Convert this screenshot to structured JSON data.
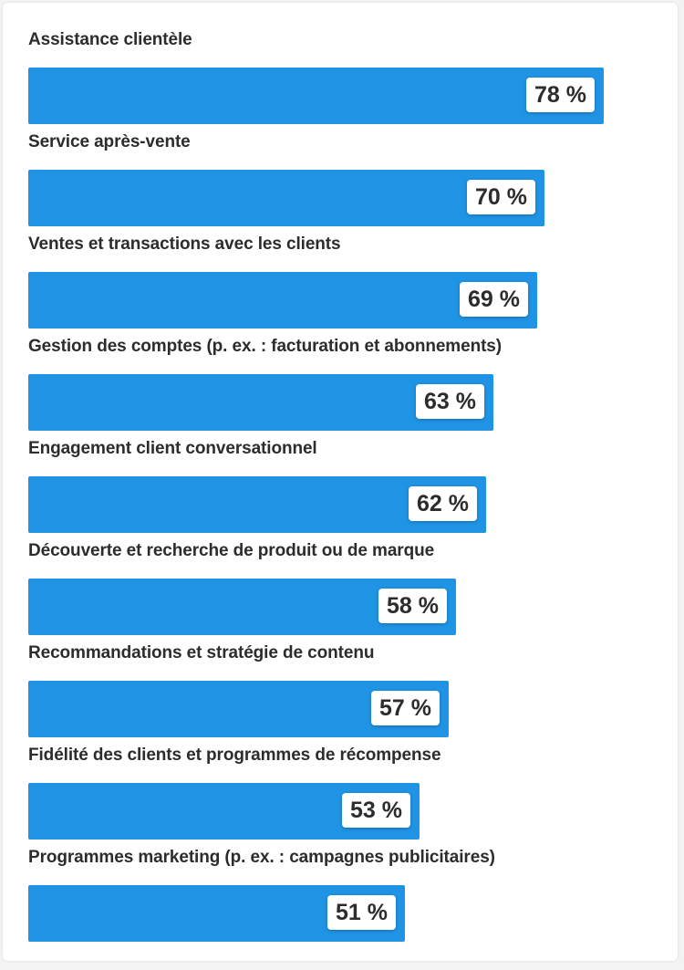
{
  "chart_data": {
    "type": "bar",
    "orientation": "horizontal",
    "categories": [
      "Assistance clientèle",
      "Service après-vente",
      "Ventes et transactions avec les clients",
      "Gestion des comptes (p. ex. : facturation et abonnements)",
      "Engagement client conversationnel",
      "Découverte et recherche de produit ou de marque",
      "Recommandations et stratégie de contenu",
      "Fidélité des clients et programmes de récompense",
      "Programmes marketing (p. ex. : campagnes publicitaires)"
    ],
    "values": [
      78,
      70,
      69,
      63,
      62,
      58,
      57,
      53,
      51
    ],
    "value_labels": [
      "78 %",
      "70 %",
      "69 %",
      "63 %",
      "62 %",
      "58 %",
      "57 %",
      "53 %",
      "51 %"
    ],
    "xlim": [
      0,
      86.5
    ],
    "title": "",
    "xlabel": "",
    "ylabel": "",
    "grid": false,
    "legend": "none",
    "bar_color": "#1f93e4",
    "label_color": "#2c2c2c"
  }
}
